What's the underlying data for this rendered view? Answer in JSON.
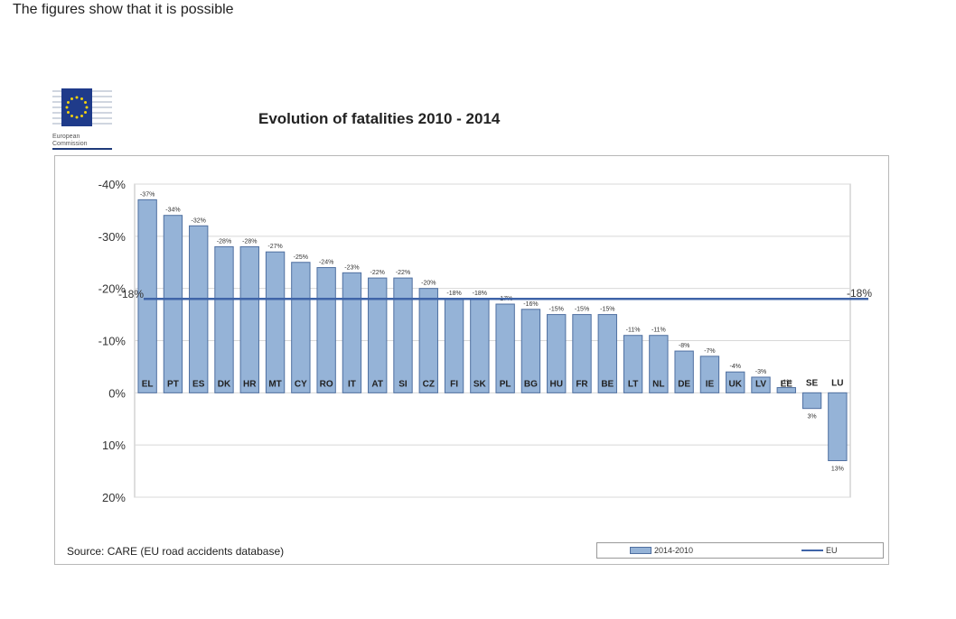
{
  "page": {
    "caption": "The figures show that it is possible",
    "logo_text": [
      "European",
      "Commission"
    ],
    "source": "Source: CARE (EU road accidents database)"
  },
  "colors": {
    "bar_fill": "#95b3d7",
    "bar_stroke": "#4f6fa0",
    "eu_line": "#3f64a8",
    "grid": "#d8d8d8"
  },
  "chart_data": {
    "type": "bar",
    "title": "Evolution of fatalities 2010 - 2014",
    "categories": [
      "EL",
      "PT",
      "ES",
      "DK",
      "HR",
      "MT",
      "CY",
      "RO",
      "IT",
      "AT",
      "SI",
      "CZ",
      "FI",
      "SK",
      "PL",
      "BG",
      "HU",
      "FR",
      "BE",
      "LT",
      "NL",
      "DE",
      "IE",
      "UK",
      "LV",
      "EE",
      "SE",
      "LU"
    ],
    "series": [
      {
        "name": "2014-2010",
        "values": [
          -37,
          -34,
          -32,
          -28,
          -28,
          -27,
          -25,
          -24,
          -23,
          -22,
          -22,
          -20,
          -18,
          -18,
          -17,
          -16,
          -15,
          -15,
          -15,
          -11,
          -11,
          -8,
          -7,
          -4,
          -3,
          -1,
          3,
          13
        ],
        "labels": [
          "-37%",
          "-34%",
          "-32%",
          "-28%",
          "-28%",
          "-27%",
          "-25%",
          "-24%",
          "-23%",
          "-22%",
          "-22%",
          "-20%",
          "-18%",
          "-18%",
          "-17%",
          "-16%",
          "-15%",
          "-15%",
          "-15%",
          "-11%",
          "-11%",
          "-8%",
          "-7%",
          "-4%",
          "-3%",
          "-1%",
          "3%",
          "13%"
        ]
      }
    ],
    "reference_line": {
      "name": "EU",
      "value": -18,
      "label": "-18%"
    },
    "y_axis": {
      "ticks": [
        -40,
        -30,
        -20,
        -10,
        0,
        10,
        20
      ],
      "tick_labels": [
        "-40%",
        "-30%",
        "-20%",
        "-10%",
        "0%",
        "10%",
        "20%"
      ],
      "range": [
        -40,
        20
      ],
      "reversed": true
    },
    "grid": true,
    "legend": {
      "position": "bottom-right",
      "items": [
        "2014-2010",
        "EU"
      ]
    }
  }
}
